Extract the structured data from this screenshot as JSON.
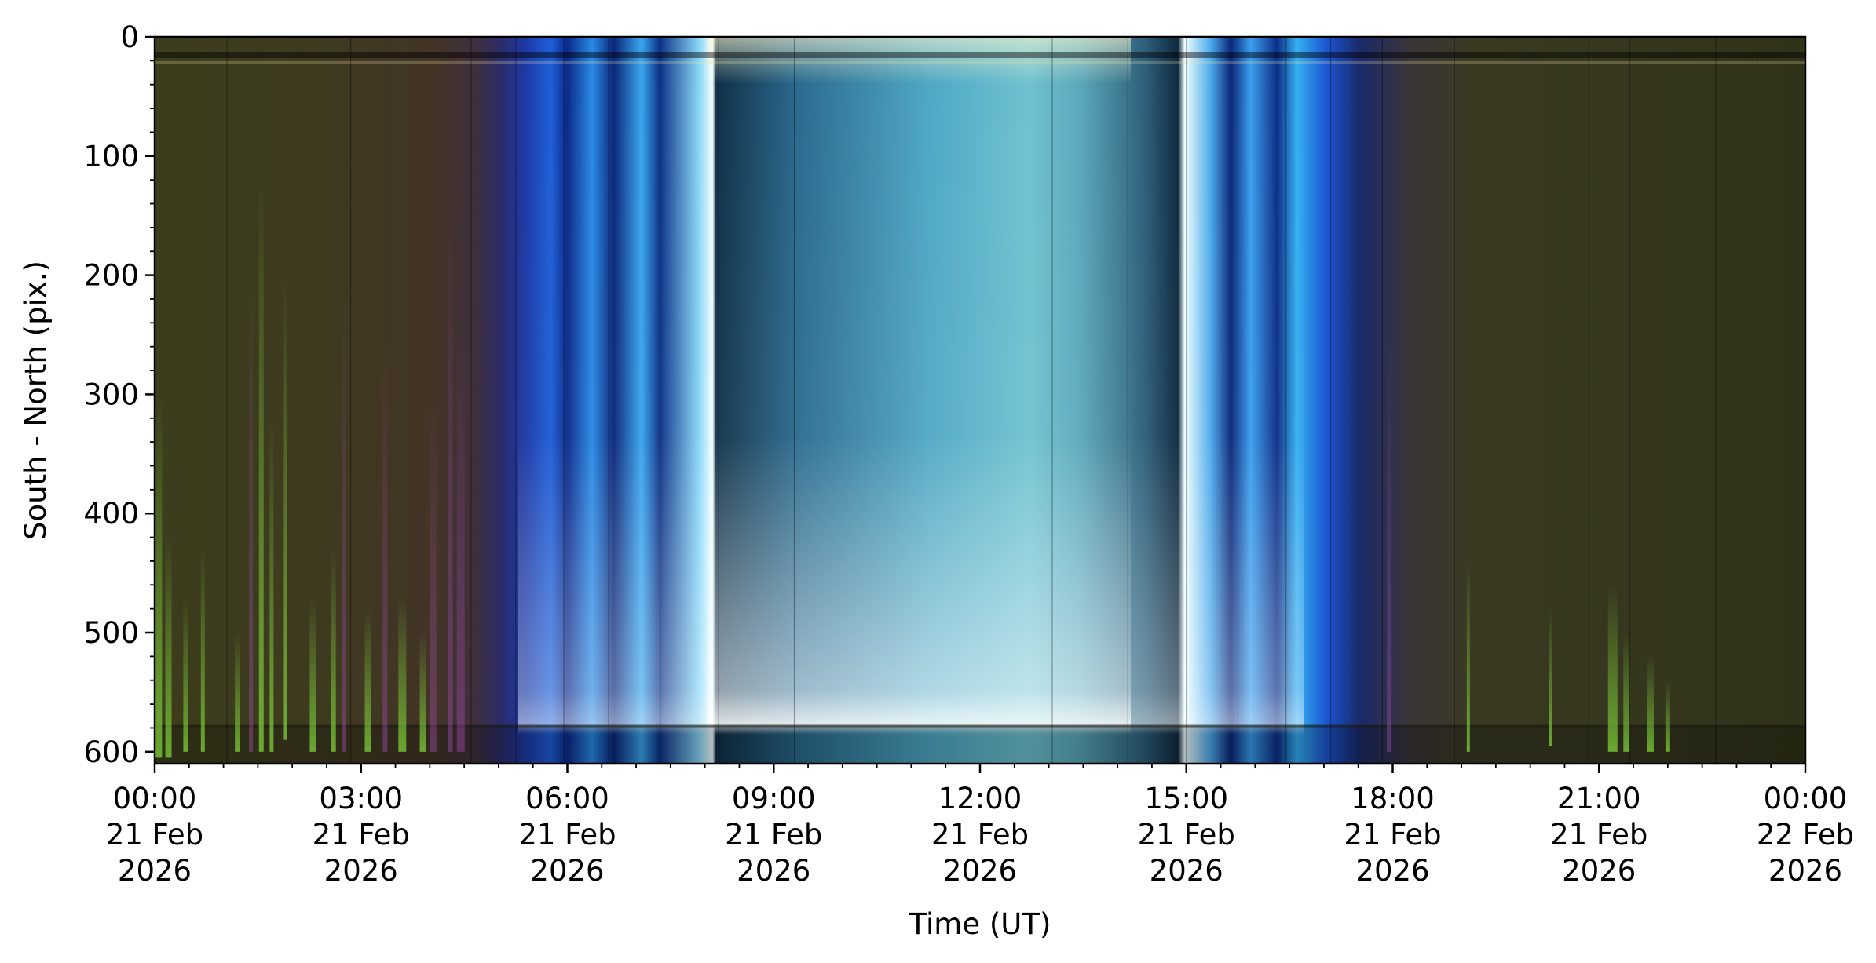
{
  "chart_data": {
    "type": "heatmap",
    "title": "",
    "xlabel": "Time (UT)",
    "ylabel": "South - North (pix.)",
    "xlim": [
      "2026-02-21 00:00",
      "2026-02-22 00:00"
    ],
    "ylim": [
      610,
      0
    ],
    "y_inverted": true,
    "grid": false,
    "legend": "none",
    "x_ticks": [
      {
        "time": "2026-02-21 00:00",
        "lines": [
          "00:00",
          "21 Feb",
          "2026"
        ]
      },
      {
        "time": "2026-02-21 03:00",
        "lines": [
          "03:00",
          "21 Feb",
          "2026"
        ]
      },
      {
        "time": "2026-02-21 06:00",
        "lines": [
          "06:00",
          "21 Feb",
          "2026"
        ]
      },
      {
        "time": "2026-02-21 09:00",
        "lines": [
          "09:00",
          "21 Feb",
          "2026"
        ]
      },
      {
        "time": "2026-02-21 12:00",
        "lines": [
          "12:00",
          "21 Feb",
          "2026"
        ]
      },
      {
        "time": "2026-02-21 15:00",
        "lines": [
          "15:00",
          "21 Feb",
          "2026"
        ]
      },
      {
        "time": "2026-02-21 18:00",
        "lines": [
          "18:00",
          "21 Feb",
          "2026"
        ]
      },
      {
        "time": "2026-02-21 21:00",
        "lines": [
          "21:00",
          "21 Feb",
          "2026"
        ]
      },
      {
        "time": "2026-02-22 00:00",
        "lines": [
          "00:00",
          "22 Feb",
          "2026"
        ]
      }
    ],
    "y_ticks": [
      0,
      100,
      200,
      300,
      400,
      500,
      600
    ],
    "colors": {
      "night": "#3a3a1c",
      "aurora_green": "#6fae2a",
      "aurora_purple": "#6a3a7a",
      "twilight_blue": "#1e6fe0",
      "day_cyan": "#4fa0b8",
      "day_bright": "#eafcff"
    }
  }
}
